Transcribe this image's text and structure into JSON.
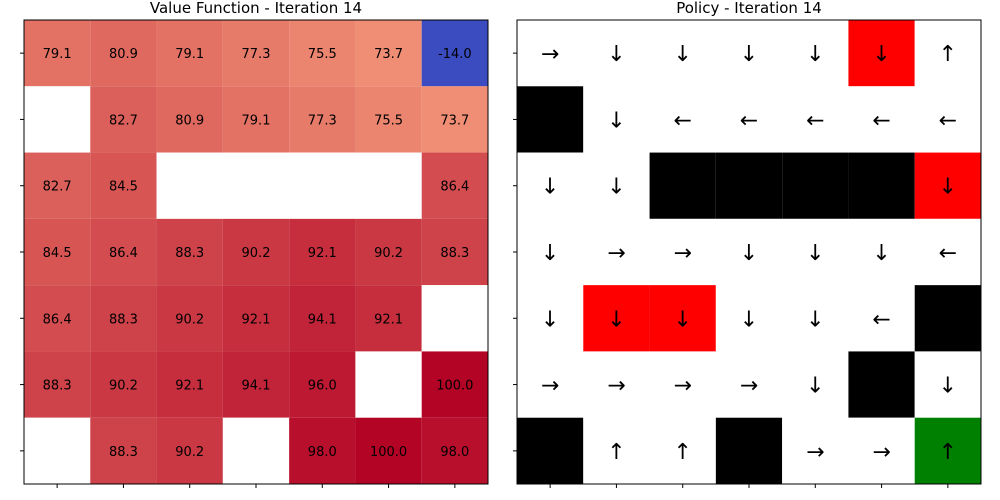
{
  "chart_data": [
    {
      "type": "heatmap",
      "title": "Value Function - Iteration 14",
      "rows": 7,
      "cols": 7,
      "values": [
        [
          79.1,
          80.9,
          79.1,
          77.3,
          75.5,
          73.7,
          -14.0
        ],
        [
          null,
          82.7,
          80.9,
          79.1,
          77.3,
          75.5,
          73.7
        ],
        [
          82.7,
          84.5,
          null,
          null,
          null,
          null,
          86.4
        ],
        [
          84.5,
          86.4,
          88.3,
          90.2,
          92.1,
          90.2,
          88.3
        ],
        [
          86.4,
          88.3,
          90.2,
          92.1,
          94.1,
          92.1,
          null
        ],
        [
          88.3,
          90.2,
          92.1,
          94.1,
          96.0,
          null,
          100.0
        ],
        [
          null,
          88.3,
          90.2,
          null,
          98.0,
          100.0,
          98.0
        ]
      ],
      "colormap": "coolwarm",
      "value_range": [
        -14.0,
        100.0
      ],
      "grid": false
    },
    {
      "type": "table",
      "title": "Policy - Iteration 14",
      "rows": 7,
      "cols": 7,
      "cells": [
        [
          {
            "a": "→",
            "c": "white"
          },
          {
            "a": "↓",
            "c": "white"
          },
          {
            "a": "↓",
            "c": "white"
          },
          {
            "a": "↓",
            "c": "white"
          },
          {
            "a": "↓",
            "c": "white"
          },
          {
            "a": "↓",
            "c": "red"
          },
          {
            "a": "↑",
            "c": "white"
          }
        ],
        [
          {
            "a": "",
            "c": "black"
          },
          {
            "a": "↓",
            "c": "white"
          },
          {
            "a": "←",
            "c": "white"
          },
          {
            "a": "←",
            "c": "white"
          },
          {
            "a": "←",
            "c": "white"
          },
          {
            "a": "←",
            "c": "white"
          },
          {
            "a": "←",
            "c": "white"
          }
        ],
        [
          {
            "a": "↓",
            "c": "white"
          },
          {
            "a": "↓",
            "c": "white"
          },
          {
            "a": "",
            "c": "black"
          },
          {
            "a": "",
            "c": "black"
          },
          {
            "a": "",
            "c": "black"
          },
          {
            "a": "",
            "c": "black"
          },
          {
            "a": "↓",
            "c": "red"
          }
        ],
        [
          {
            "a": "↓",
            "c": "white"
          },
          {
            "a": "→",
            "c": "white"
          },
          {
            "a": "→",
            "c": "white"
          },
          {
            "a": "↓",
            "c": "white"
          },
          {
            "a": "↓",
            "c": "white"
          },
          {
            "a": "↓",
            "c": "white"
          },
          {
            "a": "←",
            "c": "white"
          }
        ],
        [
          {
            "a": "↓",
            "c": "white"
          },
          {
            "a": "↓",
            "c": "red"
          },
          {
            "a": "↓",
            "c": "red"
          },
          {
            "a": "↓",
            "c": "white"
          },
          {
            "a": "↓",
            "c": "white"
          },
          {
            "a": "←",
            "c": "white"
          },
          {
            "a": "",
            "c": "black"
          }
        ],
        [
          {
            "a": "→",
            "c": "white"
          },
          {
            "a": "→",
            "c": "white"
          },
          {
            "a": "→",
            "c": "white"
          },
          {
            "a": "→",
            "c": "white"
          },
          {
            "a": "↓",
            "c": "white"
          },
          {
            "a": "",
            "c": "black"
          },
          {
            "a": "↓",
            "c": "white"
          }
        ],
        [
          {
            "a": "",
            "c": "black"
          },
          {
            "a": "↑",
            "c": "white"
          },
          {
            "a": "↑",
            "c": "white"
          },
          {
            "a": "",
            "c": "black"
          },
          {
            "a": "→",
            "c": "white"
          },
          {
            "a": "→",
            "c": "white"
          },
          {
            "a": "↑",
            "c": "green"
          }
        ]
      ],
      "cell_colors": {
        "white": "#ffffff",
        "black": "#000000",
        "red": "#ff0000",
        "green": "#008000"
      }
    }
  ]
}
